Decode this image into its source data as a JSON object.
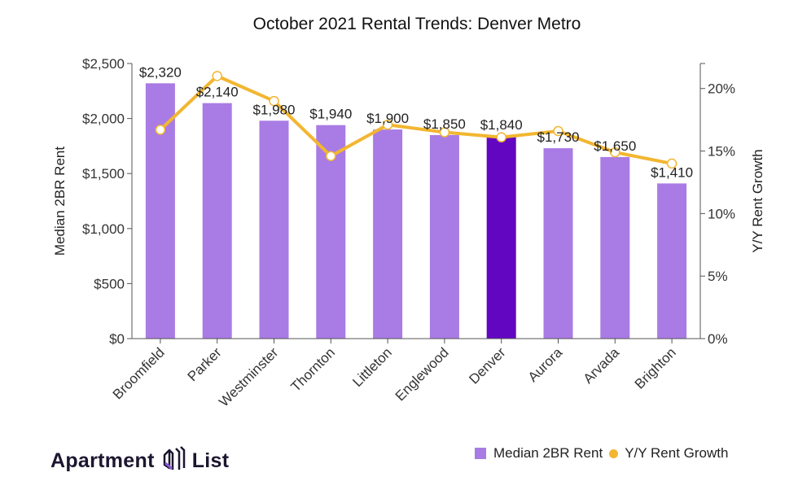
{
  "chart_data": {
    "type": "bar",
    "title": "October 2021 Rental Trends: Denver Metro",
    "categories": [
      "Broomfield",
      "Parker",
      "Westminster",
      "Thornton",
      "Littleton",
      "Englewood",
      "Denver",
      "Aurora",
      "Arvada",
      "Brighton"
    ],
    "series": [
      {
        "name": "Median 2BR Rent",
        "type": "bar",
        "axis": "left",
        "values": [
          2320,
          2140,
          1980,
          1940,
          1900,
          1850,
          1840,
          1730,
          1650,
          1410
        ],
        "labels": [
          "$2,320",
          "$2,140",
          "$1,980",
          "$1,940",
          "$1,900",
          "$1,850",
          "$1,840",
          "$1,730",
          "$1,650",
          "$1,410"
        ],
        "color": "#a97be4",
        "highlight_index": 6,
        "highlight_color": "#6306c2"
      },
      {
        "name": "Y/Y Rent Growth",
        "type": "line",
        "axis": "right",
        "values": [
          16.7,
          21.0,
          19.0,
          14.6,
          17.1,
          16.5,
          16.1,
          16.6,
          14.9,
          14.0
        ],
        "color": "#f2b630"
      }
    ],
    "ylabel": "Median 2BR Rent",
    "ylim": [
      0,
      2500
    ],
    "yticks": [
      "$0",
      "$500",
      "$1,000",
      "$1,500",
      "$2,000",
      "$2,500"
    ],
    "ytick_values": [
      0,
      500,
      1000,
      1500,
      2000,
      2500
    ],
    "y2label": "Y/Y Rent Growth",
    "y2lim": [
      0,
      22
    ],
    "y2ticks": [
      "0%",
      "5%",
      "10%",
      "15%",
      "20%"
    ],
    "y2tick_values": [
      0,
      5,
      10,
      15,
      20
    ],
    "grid": false,
    "legend_position": "bottom-right"
  },
  "legend": {
    "items": [
      {
        "label": "Median 2BR Rent"
      },
      {
        "label": "Y/Y Rent Growth"
      }
    ]
  },
  "branding": {
    "logo_left": "Apartment",
    "logo_right": "List",
    "logo_icon": "apartment-list-logo-icon"
  }
}
